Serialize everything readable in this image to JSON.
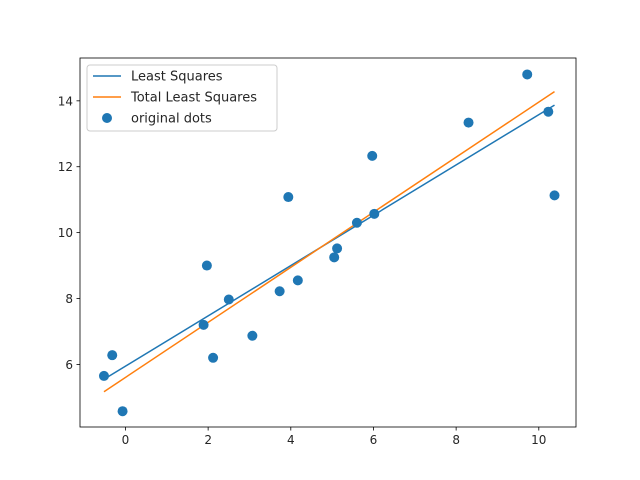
{
  "chart_data": {
    "type": "scatter",
    "title": "",
    "xlabel": "",
    "ylabel": "",
    "xlim": [
      -1.1,
      10.9
    ],
    "ylim": [
      4.1,
      15.3
    ],
    "x_ticks": [
      0,
      2,
      4,
      6,
      8,
      10
    ],
    "y_ticks": [
      6,
      8,
      10,
      12,
      14
    ],
    "grid": false,
    "legend": {
      "placement": "top-left",
      "entries": [
        "Least Squares",
        "Total Least Squares",
        "original dots"
      ]
    },
    "series": [
      {
        "name": "Least Squares",
        "kind": "line",
        "color": "#1f77b4",
        "x": [
          -0.52,
          10.38
        ],
        "y": [
          5.55,
          13.87
        ]
      },
      {
        "name": "Total Least Squares",
        "kind": "line",
        "color": "#ff7f0e",
        "x": [
          -0.52,
          10.38
        ],
        "y": [
          5.17,
          14.28
        ]
      },
      {
        "name": "original dots",
        "kind": "scatter",
        "color": "#1f77b4",
        "points": [
          [
            -0.52,
            5.65
          ],
          [
            -0.32,
            6.28
          ],
          [
            -0.07,
            4.58
          ],
          [
            1.89,
            7.2
          ],
          [
            1.97,
            9.0
          ],
          [
            2.12,
            6.2
          ],
          [
            2.5,
            7.97
          ],
          [
            3.07,
            6.87
          ],
          [
            3.73,
            8.22
          ],
          [
            3.94,
            11.08
          ],
          [
            4.17,
            8.55
          ],
          [
            5.05,
            9.25
          ],
          [
            5.12,
            9.52
          ],
          [
            5.6,
            10.3
          ],
          [
            5.97,
            12.33
          ],
          [
            6.02,
            10.57
          ],
          [
            8.3,
            13.34
          ],
          [
            9.72,
            14.8
          ],
          [
            10.23,
            13.67
          ],
          [
            10.38,
            11.13
          ]
        ]
      }
    ]
  }
}
